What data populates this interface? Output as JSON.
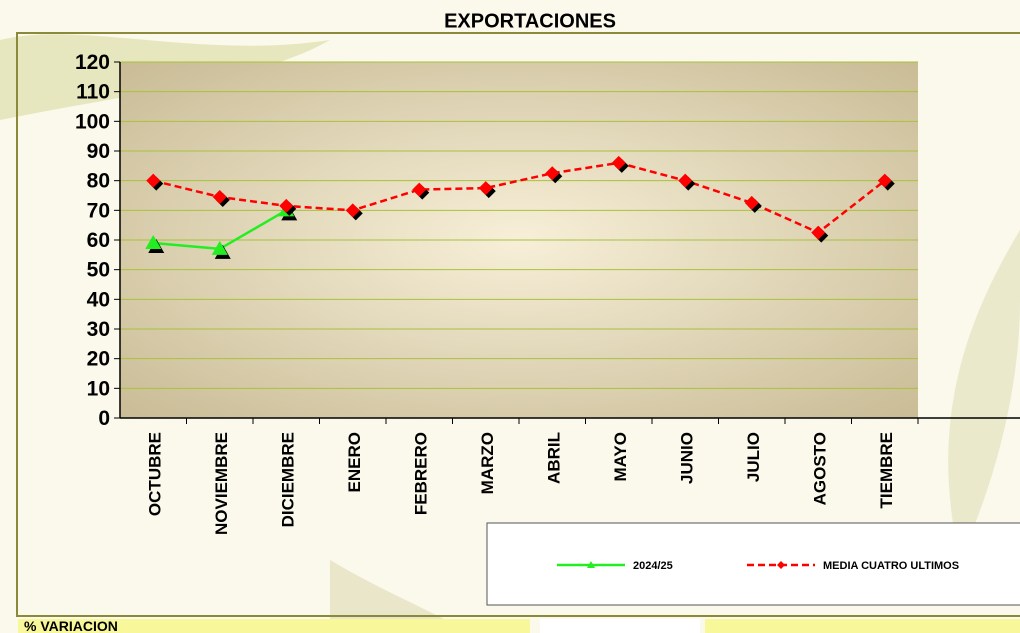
{
  "chart_data": {
    "type": "line",
    "title": "EXPORTACIONES",
    "categories": [
      "OCTUBRE",
      "NOVIEMBRE",
      "DICIEMBRE",
      "ENERO",
      "FEBRERO",
      "MARZO",
      "ABRIL",
      "MAYO",
      "JUNIO",
      "JULIO",
      "AGOSTO",
      "TIEMBRE"
    ],
    "series": [
      {
        "name": "2024/25",
        "color": "#22ee22",
        "marker": "triangle",
        "dashed": false,
        "values": [
          59,
          57,
          70,
          null,
          null,
          null,
          null,
          null,
          null,
          null,
          null,
          null
        ]
      },
      {
        "name": "MEDIA CUATRO ULTIMOS",
        "color": "#ff0000",
        "marker": "diamond",
        "dashed": true,
        "values": [
          80,
          74.5,
          71.5,
          70,
          77,
          77.5,
          82.5,
          86,
          80,
          72.5,
          62.5,
          80
        ]
      }
    ],
    "ylim": [
      0,
      120
    ],
    "yticks": [
      0,
      10,
      20,
      30,
      40,
      50,
      60,
      70,
      80,
      90,
      100,
      110,
      120
    ],
    "grid": true,
    "footer_label": "% VARIACION"
  }
}
